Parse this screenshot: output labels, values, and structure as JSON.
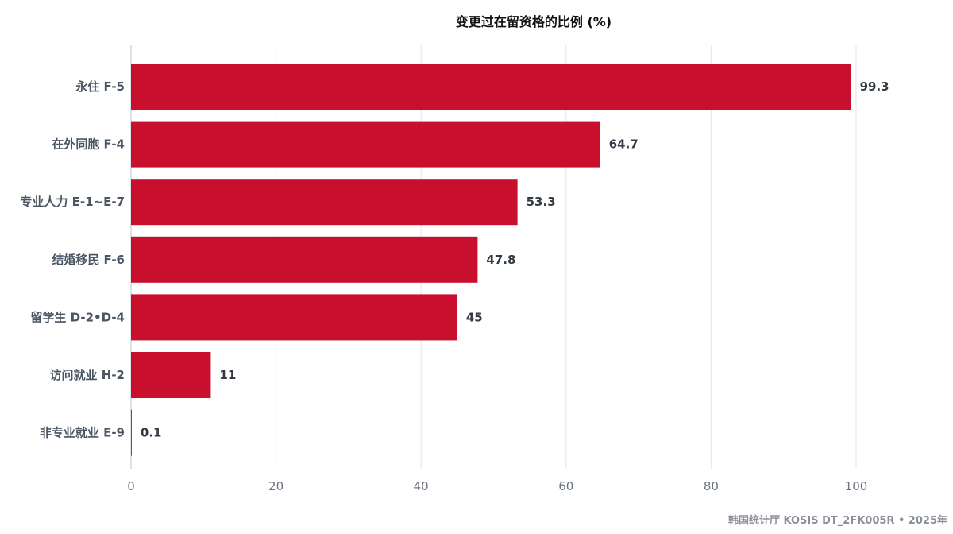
{
  "chart_data": {
    "type": "bar",
    "orientation": "horizontal",
    "title": "变更过在留资格的比例 (%)",
    "categories": [
      "永住 F-5",
      "在外同胞 F-4",
      "专业人力 E-1~E-7",
      "结婚移民 F-6",
      "留学生 D-2•D-4",
      "访问就业 H-2",
      "非专业就业 E-9"
    ],
    "values": [
      99.3,
      64.7,
      53.3,
      47.8,
      45,
      11,
      0.1
    ],
    "value_labels": [
      "99.3",
      "64.7",
      "53.3",
      "47.8",
      "45",
      "11",
      "0.1"
    ],
    "xlim": [
      0,
      100
    ],
    "xticks": [
      "0",
      "20",
      "40",
      "60",
      "80",
      "100"
    ],
    "grid": true,
    "bar_color": "#c8102e",
    "source": "韩国统计厅 KOSIS DT_2FK005R • 2025年"
  }
}
